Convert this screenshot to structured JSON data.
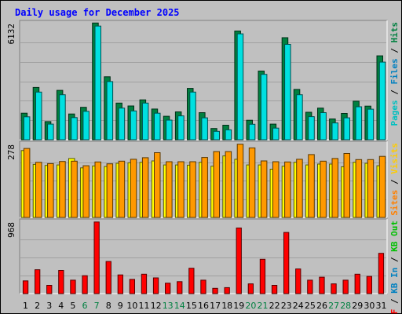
{
  "chart_data": {
    "type": "bar",
    "title": "Daily usage for December 2025",
    "categories": [
      "1",
      "2",
      "3",
      "4",
      "5",
      "6",
      "7",
      "8",
      "9",
      "10",
      "11",
      "12",
      "13",
      "14",
      "15",
      "16",
      "17",
      "18",
      "19",
      "20",
      "21",
      "22",
      "23",
      "24",
      "25",
      "26",
      "27",
      "28",
      "29",
      "30",
      "31"
    ],
    "weekend_days": [
      "6",
      "7",
      "13",
      "14",
      "20",
      "21",
      "27",
      "28"
    ],
    "grid": true,
    "panels": [
      {
        "id": "pages-files-hits",
        "max_label": "6132",
        "ymax": 6132,
        "right_label_parts": [
          {
            "text": "Pages",
            "color": "#00c0c0"
          },
          {
            "text": " / ",
            "color": "#000000"
          },
          {
            "text": "Files",
            "color": "#0080c0"
          },
          {
            "text": " / ",
            "color": "#000000"
          },
          {
            "text": "Hits",
            "color": "#008040"
          }
        ],
        "series": [
          {
            "key": "hits",
            "color": "#008040",
            "values": [
              1390,
              2740,
              950,
              2590,
              1350,
              1700,
              6120,
              3300,
              1920,
              1770,
              2090,
              1610,
              1230,
              1460,
              2690,
              1420,
              590,
              760,
              5700,
              1020,
              3600,
              820,
              5350,
              2640,
              1440,
              1660,
              1090,
              1380,
              2020,
              1760,
              4400
            ]
          },
          {
            "key": "files",
            "color": "#00e0e0",
            "values": [
              1200,
              2500,
              820,
              2360,
              1160,
              1490,
              5960,
              3050,
              1660,
              1510,
              1920,
              1390,
              1030,
              1250,
              2500,
              1150,
              440,
              520,
              5550,
              810,
              3430,
              610,
              5000,
              2360,
              1210,
              1420,
              880,
              1150,
              1730,
              1600,
              4070
            ]
          }
        ]
      },
      {
        "id": "visits-sites",
        "max_label": "278",
        "ymax": 278,
        "right_label_parts": [
          {
            "text": "Sites",
            "color": "#ff8000"
          },
          {
            "text": " / ",
            "color": "#000000"
          },
          {
            "text": "Visits",
            "color": "#ffcc00"
          }
        ],
        "series": [
          {
            "key": "visits",
            "color": "#ffff00",
            "values": [
              252,
              200,
              196,
              198,
              222,
              187,
              194,
              192,
              204,
              206,
              208,
              213,
              198,
              198,
              197,
              208,
              193,
              232,
              219,
              198,
              198,
              182,
              193,
              208,
              198,
              201,
              201,
              191,
              208,
              204,
              195
            ]
          },
          {
            "key": "sites",
            "color": "#ff9900",
            "values": [
              260,
              208,
              203,
              211,
              212,
              195,
              209,
              202,
              212,
              219,
              225,
              244,
              210,
              210,
              210,
              226,
              248,
              248,
              276,
              262,
              213,
              210,
              209,
              219,
              237,
              212,
              222,
              241,
              218,
              218,
              230
            ]
          }
        ]
      },
      {
        "id": "kbf-kbin-kbout",
        "max_label": "968",
        "ymax": 968,
        "right_label_parts": [
          {
            "text": "KB F",
            "color": "#ff0000"
          },
          {
            "text": " / ",
            "color": "#000000"
          },
          {
            "text": "KB In",
            "color": "#0080c0"
          },
          {
            "text": " / ",
            "color": "#000000"
          },
          {
            "text": "KB Out",
            "color": "#00c000"
          }
        ],
        "series": [
          {
            "key": "kbf",
            "color": "#ff0000",
            "values": [
              170,
              320,
              110,
              310,
              180,
              240,
              960,
              430,
              250,
              190,
              260,
              210,
              140,
              160,
              340,
              180,
              70,
              80,
              880,
              130,
              460,
              110,
              820,
              330,
              180,
              220,
              130,
              180,
              260,
              230,
              540
            ]
          }
        ]
      }
    ]
  }
}
